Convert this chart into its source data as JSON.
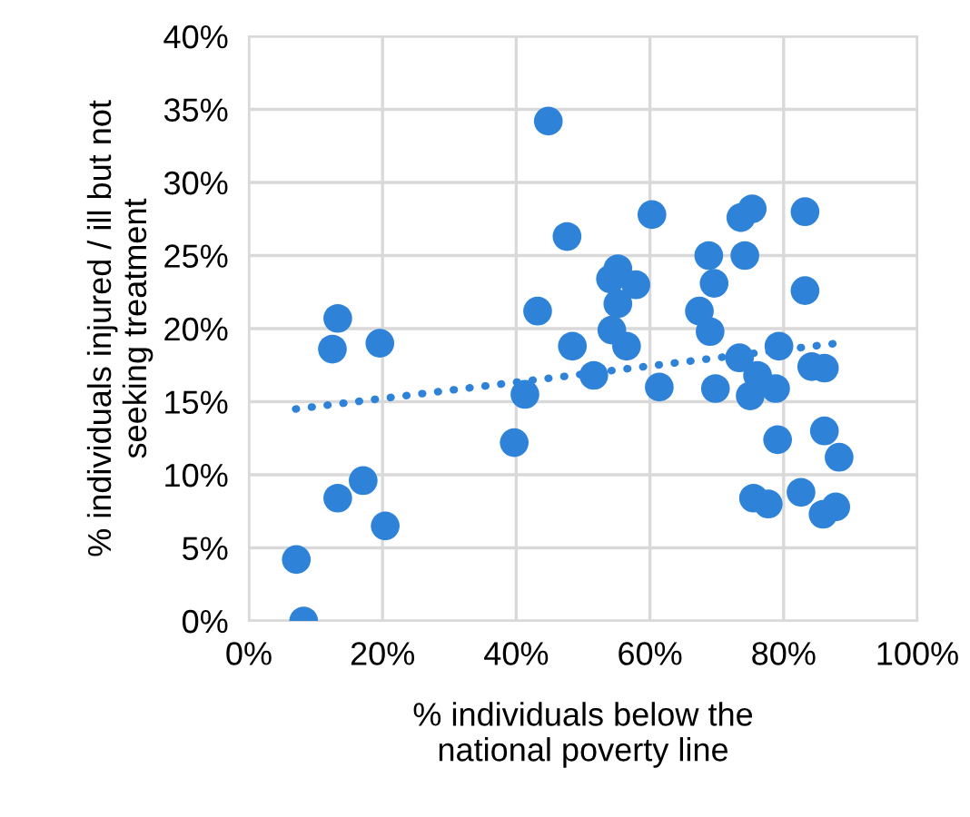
{
  "chart_data": {
    "type": "scatter",
    "xlabel": "% individuals below the\nnational poverty line",
    "ylabel": "% individuals injured / ill but not\nseeking treatment",
    "xlim": [
      0,
      1
    ],
    "xticks": [
      {
        "value": 0,
        "label": "0%"
      },
      {
        "value": 0.2,
        "label": "20%"
      },
      {
        "value": 0.4,
        "label": "40%"
      },
      {
        "value": 0.6,
        "label": "60%"
      },
      {
        "value": 0.8,
        "label": "80%"
      },
      {
        "value": 1,
        "label": "100%"
      }
    ],
    "ylim": [
      0,
      0.4
    ],
    "yticks": [
      {
        "value": 0,
        "label": "0%"
      },
      {
        "value": 0.05,
        "label": "5%"
      },
      {
        "value": 0.1,
        "label": "10%"
      },
      {
        "value": 0.15,
        "label": "15%"
      },
      {
        "value": 0.2,
        "label": "20%"
      },
      {
        "value": 0.25,
        "label": "25%"
      },
      {
        "value": 0.3,
        "label": "30%"
      },
      {
        "value": 0.35,
        "label": "35%"
      },
      {
        "value": 0.4,
        "label": "40%"
      }
    ],
    "grid": true,
    "series": [
      {
        "color": "#2e83d9",
        "marker": "circle",
        "x": [
          0.071,
          0.082,
          0.125,
          0.133,
          0.133,
          0.171,
          0.196,
          0.204,
          0.397,
          0.413,
          0.432,
          0.448,
          0.476,
          0.484,
          0.516,
          0.552,
          0.541,
          0.579,
          0.552,
          0.543,
          0.565,
          0.603,
          0.614,
          0.688,
          0.696,
          0.674,
          0.69,
          0.698,
          0.736,
          0.753,
          0.742,
          0.734,
          0.761,
          0.75,
          0.788,
          0.793,
          0.832,
          0.832,
          0.842,
          0.861,
          0.861,
          0.883,
          0.791,
          0.826,
          0.755,
          0.777,
          0.859,
          0.878
        ],
        "values": [
          0.042,
          0.0,
          0.186,
          0.207,
          0.084,
          0.096,
          0.19,
          0.065,
          0.122,
          0.155,
          0.212,
          0.342,
          0.263,
          0.188,
          0.168,
          0.241,
          0.234,
          0.23,
          0.217,
          0.199,
          0.188,
          0.278,
          0.16,
          0.25,
          0.231,
          0.212,
          0.198,
          0.159,
          0.276,
          0.282,
          0.25,
          0.18,
          0.168,
          0.154,
          0.159,
          0.188,
          0.28,
          0.226,
          0.174,
          0.173,
          0.13,
          0.112,
          0.124,
          0.088,
          0.084,
          0.08,
          0.073,
          0.078
        ]
      },
      {
        "type": "line",
        "color": "#2e83d9",
        "line_style": "dotted",
        "marker": "none",
        "x": [
          0.07,
          0.88
        ],
        "values": [
          0.145,
          0.19
        ]
      }
    ]
  }
}
